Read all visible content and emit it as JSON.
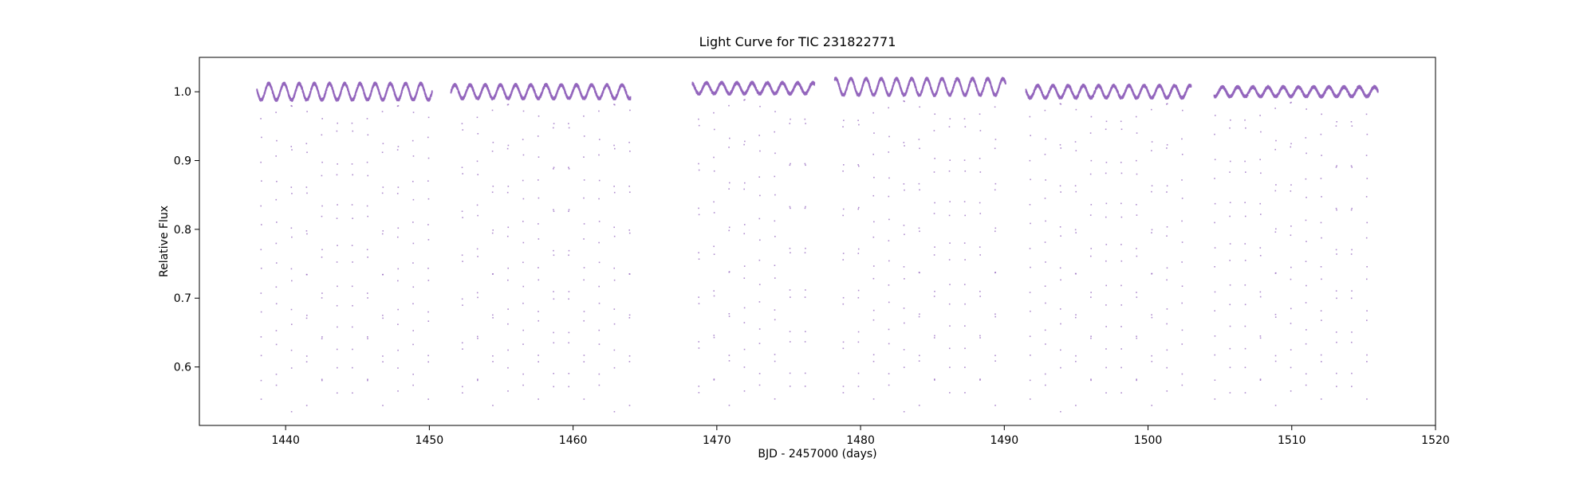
{
  "chart_data": {
    "type": "scatter",
    "title": "Light Curve for TIC 231822771",
    "xlabel": "BJD - 2457000 (days)",
    "ylabel": "Relative Flux",
    "xlim": [
      1434,
      1520
    ],
    "ylim": [
      0.515,
      1.05
    ],
    "xticks": [
      1440,
      1450,
      1460,
      1470,
      1480,
      1490,
      1500,
      1510,
      1520
    ],
    "yticks": [
      0.6,
      0.7,
      0.8,
      0.9,
      1.0
    ],
    "grid": false,
    "legend": "none",
    "point_color": "#9467bd",
    "segments": [
      {
        "start": 1438.0,
        "end": 1450.2,
        "first_eclipse": 1438.3,
        "baseline": 1.0,
        "variability": 0.012
      },
      {
        "start": 1451.5,
        "end": 1464.0,
        "first_eclipse": 1452.3,
        "baseline": 1.0,
        "variability": 0.01
      },
      {
        "start": 1468.3,
        "end": 1476.8,
        "first_eclipse": 1468.75,
        "baseline": 1.005,
        "variability": 0.008
      },
      {
        "start": 1478.2,
        "end": 1490.1,
        "first_eclipse": 1478.8,
        "baseline": 1.007,
        "variability": 0.012
      },
      {
        "start": 1491.5,
        "end": 1503.0,
        "first_eclipse": 1491.8,
        "baseline": 1.0,
        "variability": 0.009
      },
      {
        "start": 1504.6,
        "end": 1516.0,
        "first_eclipse": 1504.65,
        "baseline": 1.0,
        "variability": 0.007
      }
    ],
    "eclipse": {
      "period": 1.0575,
      "min_flux": 0.535,
      "secondary_min_flux": 0.565
    }
  }
}
